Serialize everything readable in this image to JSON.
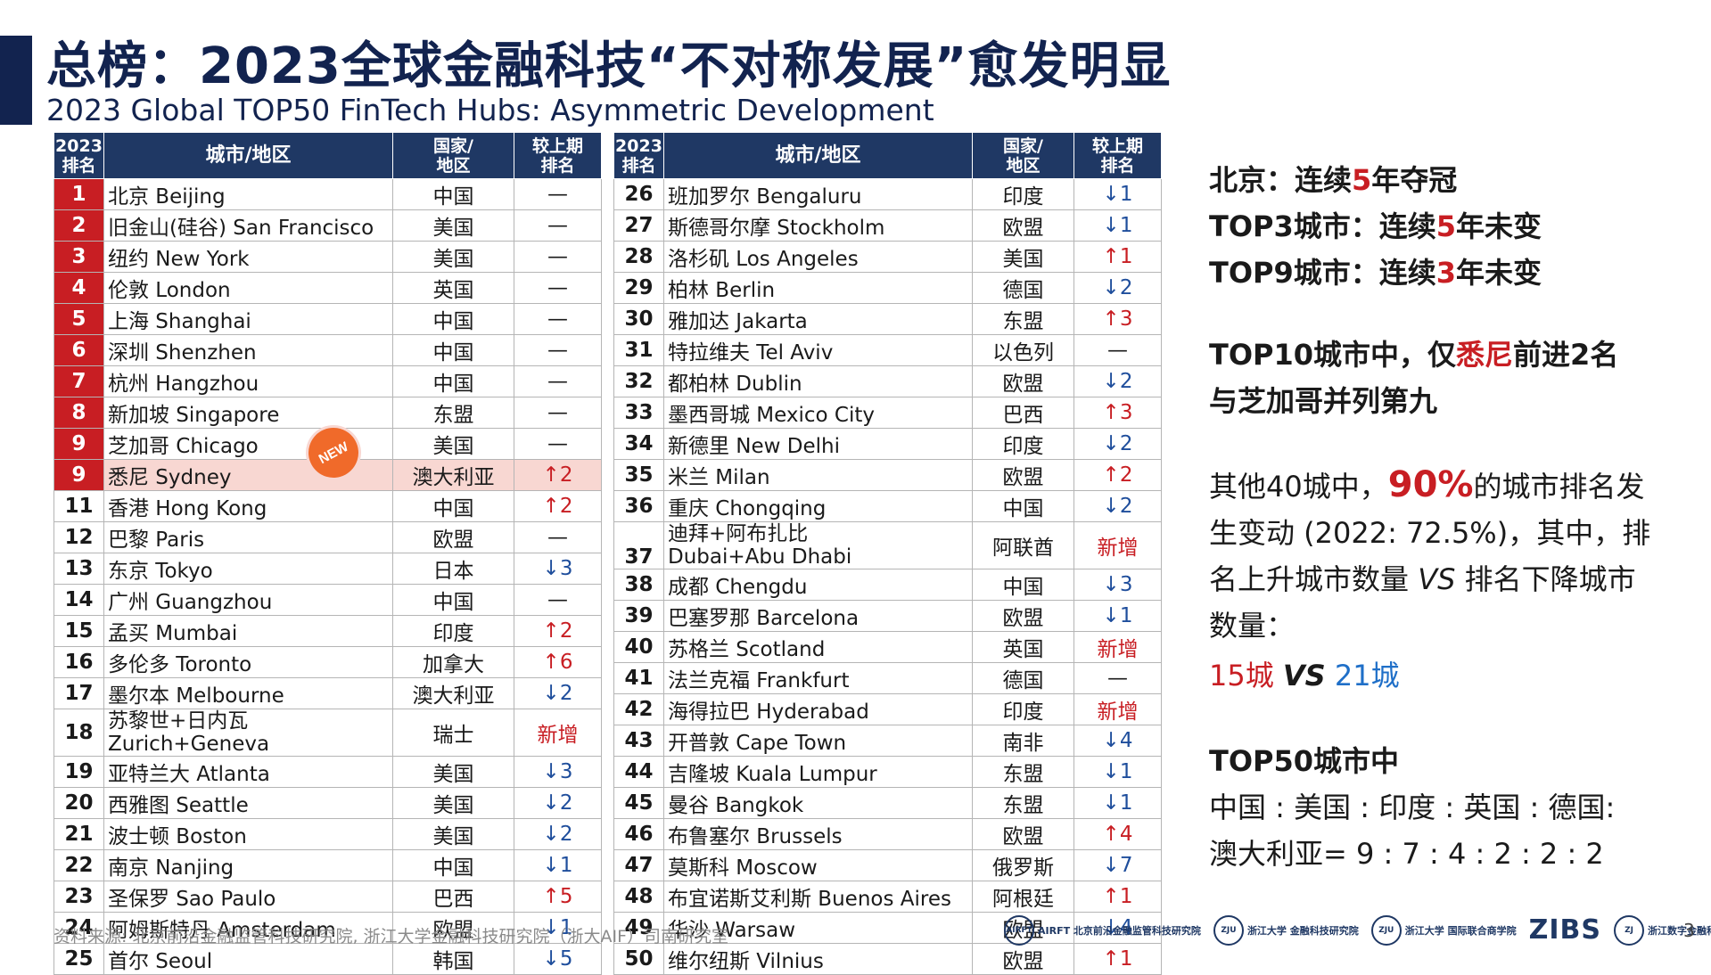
{
  "title": "总榜：2023全球金融科技“不对称发展”愈发明显",
  "subtitle": "2023 Global TOP50 FinTech Hubs: Asymmetric Development",
  "table_headers": {
    "rank": "2023\n排名",
    "city": "城市/地区",
    "country": "国家/\n地区",
    "change": "较上期\n排名"
  },
  "left_rows": [
    {
      "rank": "1",
      "city": "北京 Beijing",
      "country": "中国",
      "change": "—"
    },
    {
      "rank": "2",
      "city": "旧金山(硅谷) San Francisco",
      "country": "美国",
      "change": "—"
    },
    {
      "rank": "3",
      "city": "纽约 New York",
      "country": "美国",
      "change": "—"
    },
    {
      "rank": "4",
      "city": "伦敦 London",
      "country": "英国",
      "change": "—"
    },
    {
      "rank": "5",
      "city": "上海 Shanghai",
      "country": "中国",
      "change": "—"
    },
    {
      "rank": "6",
      "city": "深圳 Shenzhen",
      "country": "中国",
      "change": "—"
    },
    {
      "rank": "7",
      "city": "杭州 Hangzhou",
      "country": "中国",
      "change": "—"
    },
    {
      "rank": "8",
      "city": "新加坡 Singapore",
      "country": "东盟",
      "change": "—"
    },
    {
      "rank": "9",
      "city": "芝加哥 Chicago",
      "country": "美国",
      "change": "—"
    },
    {
      "rank": "9",
      "city": "悉尼 Sydney",
      "country": "澳大利亚",
      "change": "↑2"
    },
    {
      "rank": "11",
      "city": "香港 Hong Kong",
      "country": "中国",
      "change": "↑2"
    },
    {
      "rank": "12",
      "city": "巴黎 Paris",
      "country": "欧盟",
      "change": "—"
    },
    {
      "rank": "13",
      "city": "东京 Tokyo",
      "country": "日本",
      "change": "↓3"
    },
    {
      "rank": "14",
      "city": "广州 Guangzhou",
      "country": "中国",
      "change": "—"
    },
    {
      "rank": "15",
      "city": "孟买 Mumbai",
      "country": "印度",
      "change": "↑2"
    },
    {
      "rank": "16",
      "city": "多伦多 Toronto",
      "country": "加拿大",
      "change": "↑6"
    },
    {
      "rank": "17",
      "city": "墨尔本 Melbourne",
      "country": "澳大利亚",
      "change": "↓2"
    },
    {
      "rank": "18",
      "city": "苏黎世+日内瓦",
      "city2": "Zurich+Geneva",
      "country": "瑞士",
      "change": "新增"
    },
    {
      "rank": "19",
      "city": "亚特兰大 Atlanta",
      "country": "美国",
      "change": "↓3"
    },
    {
      "rank": "20",
      "city": "西雅图 Seattle",
      "country": "美国",
      "change": "↓2"
    },
    {
      "rank": "21",
      "city": "波士顿 Boston",
      "country": "美国",
      "change": "↓2"
    },
    {
      "rank": "22",
      "city": "南京 Nanjing",
      "country": "中国",
      "change": "↓1"
    },
    {
      "rank": "23",
      "city": "圣保罗 Sao Paulo",
      "country": "巴西",
      "change": "↑5"
    },
    {
      "rank": "24",
      "city": "阿姆斯特丹 Amsterdam",
      "country": "欧盟",
      "change": "↓1"
    },
    {
      "rank": "25",
      "city": "首尔 Seoul",
      "country": "韩国",
      "change": "↓5"
    }
  ],
  "right_rows": [
    {
      "rank": "26",
      "city": "班加罗尔 Bengaluru",
      "country": "印度",
      "change": "↓1"
    },
    {
      "rank": "27",
      "city": "斯德哥尔摩 Stockholm",
      "country": "欧盟",
      "change": "↓1"
    },
    {
      "rank": "28",
      "city": "洛杉矶 Los Angeles",
      "country": "美国",
      "change": "↑1"
    },
    {
      "rank": "29",
      "city": "柏林 Berlin",
      "country": "德国",
      "change": "↓2"
    },
    {
      "rank": "30",
      "city": "雅加达 Jakarta",
      "country": "东盟",
      "change": "↑3"
    },
    {
      "rank": "31",
      "city": "特拉维夫 Tel Aviv",
      "country": "以色列",
      "change": "—"
    },
    {
      "rank": "32",
      "city": "都柏林 Dublin",
      "country": "欧盟",
      "change": "↓2"
    },
    {
      "rank": "33",
      "city": "墨西哥城 Mexico City",
      "country": "巴西",
      "change": "↑3"
    },
    {
      "rank": "34",
      "city": "新德里 New Delhi",
      "country": "印度",
      "change": "↓2"
    },
    {
      "rank": "35",
      "city": "米兰 Milan",
      "country": "欧盟",
      "change": "↑2"
    },
    {
      "rank": "36",
      "city": "重庆 Chongqing",
      "country": "中国",
      "change": "↓2"
    },
    {
      "rank": "37",
      "city": "迪拜+阿布扎比",
      "city2": "Dubai+Abu Dhabi",
      "country": "阿联酋",
      "change": "新增"
    },
    {
      "rank": "38",
      "city": "成都 Chengdu",
      "country": "中国",
      "change": "↓3"
    },
    {
      "rank": "39",
      "city": "巴塞罗那 Barcelona",
      "country": "欧盟",
      "change": "↓1"
    },
    {
      "rank": "40",
      "city": "苏格兰 Scotland",
      "country": "英国",
      "change": "新增"
    },
    {
      "rank": "41",
      "city": "法兰克福 Frankfurt",
      "country": "德国",
      "change": "—"
    },
    {
      "rank": "42",
      "city": "海得拉巴 Hyderabad",
      "country": "印度",
      "change": "新增"
    },
    {
      "rank": "43",
      "city": "开普敦 Cape Town",
      "country": "南非",
      "change": "↓4"
    },
    {
      "rank": "44",
      "city": "吉隆坡 Kuala Lumpur",
      "country": "东盟",
      "change": "↓1"
    },
    {
      "rank": "45",
      "city": "曼谷 Bangkok",
      "country": "东盟",
      "change": "↓1"
    },
    {
      "rank": "46",
      "city": "布鲁塞尔 Brussels",
      "country": "欧盟",
      "change": "↑4"
    },
    {
      "rank": "47",
      "city": "莫斯科 Moscow",
      "country": "俄罗斯",
      "change": "↓7"
    },
    {
      "rank": "48",
      "city": "布宜诺斯艾利斯 Buenos Aires",
      "country": "阿根廷",
      "change": "↑1"
    },
    {
      "rank": "49",
      "city": "华沙 Warsaw",
      "country": "欧盟",
      "change": "↓4"
    },
    {
      "rank": "50",
      "city": "维尔纽斯 Vilnius",
      "country": "欧盟",
      "change": "↑1"
    }
  ],
  "badge_text": "NEW",
  "side": {
    "l1a": "北京：连续",
    "l1b": "5",
    "l1c": "年夺冠",
    "l2a": "TOP3城市：连续",
    "l2b": "5",
    "l2c": "年未变",
    "l3a": "TOP9城市：连续",
    "l3b": "3",
    "l3c": "年未变",
    "l4a": "TOP10城市中，仅",
    "l4b": "悉尼",
    "l4c": "前进2名",
    "l5": "与芝加哥并列第九",
    "p1a": "其他40城中，",
    "p1b": "90%",
    "p1c": "的城市排名发",
    "p2": "生变动 (2022: 72.5%)，其中，排",
    "p3a": "名上升城市数量 ",
    "p3b": "VS",
    "p3c": " 排名下降城市",
    "p4": "数量：",
    "cmp_a": "15城 ",
    "cmp_b": "VS",
    "cmp_c": " 21城",
    "h3": "TOP50城市中",
    "r1": "中国 : 美国 : 印度 : 英国 : 德国:",
    "r2": "澳大利亚= 9 : 7 : 4 : 2 : 2 : 2"
  },
  "footer_source": "资料来源: 北京前沿金融监管科技研究院, 浙江大学金融科技研究院（浙大AIF）司南研究室",
  "logos": [
    "AIRFT 北京前沿金融监管科技研究院",
    "浙江大学 金融科技研究院",
    "浙江大学 国际联合商学院",
    "ZIBS",
    "浙江数字金融科技联合会"
  ],
  "page_number": "3",
  "colors": {
    "navy": "#1f3864",
    "red": "#c81e23",
    "blue": "#1f6fc8",
    "highlight": "#f8d7d2"
  }
}
